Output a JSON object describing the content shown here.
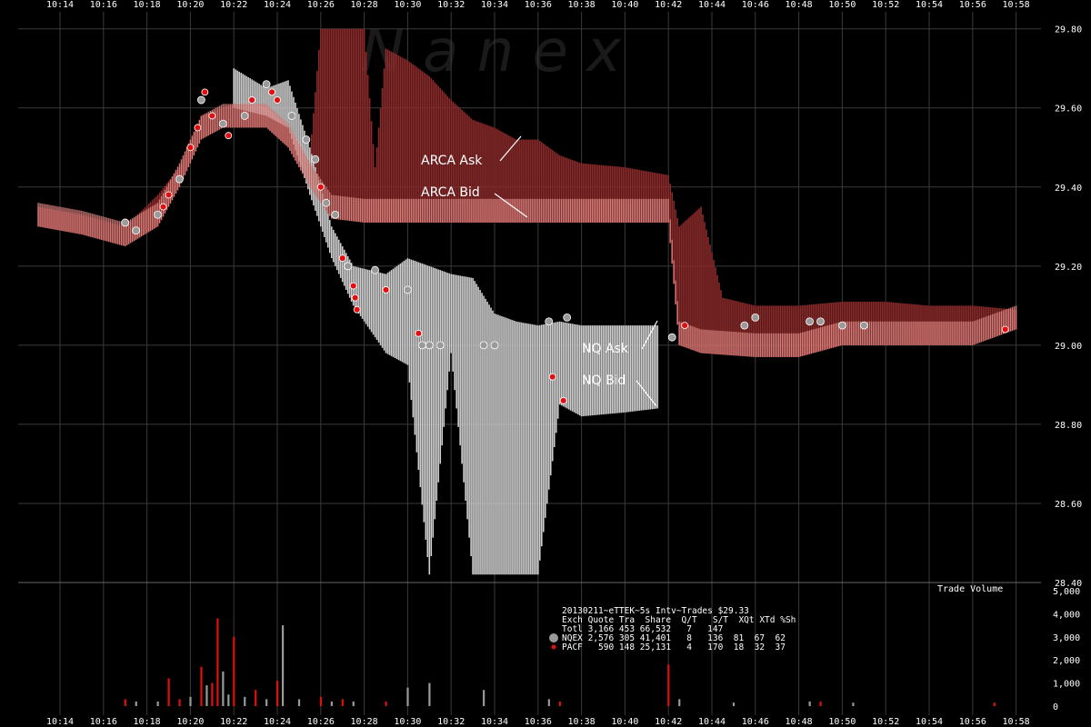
{
  "watermark": "N a n e x",
  "colors": {
    "background": "#000000",
    "grid": "#3a3a3a",
    "arca_ask": "#8b2a2a",
    "arca_bid": "#e88a86",
    "nq_quote": "#d0d0d0",
    "nqex_trade": "#9a9a9a",
    "pacf_trade": "#e01010",
    "annotation": "#ffffff"
  },
  "annotations": {
    "arca_ask": "ARCA Ask",
    "arca_bid": "ARCA Bid",
    "nq_ask": "NQ Ask",
    "nq_bid": "NQ Bid"
  },
  "volume_panel": {
    "label": "Trade Volume",
    "ticks": [
      "5,000",
      "4,000",
      "3,000",
      "2,000",
      "1,000",
      "0"
    ]
  },
  "stats_table": {
    "title": "20130211~eTTEK~5s Intv~Trades $29.33",
    "header": "Exch Quote Tra  Share  Q/T   S/T  XQt XTd %Sh",
    "rows": [
      {
        "name": "totl",
        "text": "Totl 3,166 453 66,532   7   147"
      },
      {
        "name": "nqex",
        "text": "NQEX 2,576 305 41,401   8   136  81  67  62"
      },
      {
        "name": "pacf",
        "text": "PACF   590 148 25,131   4   170  18  32  37"
      }
    ]
  },
  "chart_data": {
    "type": "line",
    "title": "",
    "xlabel": "",
    "ylabel": "",
    "x_ticks": [
      "10:14",
      "10:16",
      "10:18",
      "10:20",
      "10:22",
      "10:24",
      "10:26",
      "10:28",
      "10:30",
      "10:32",
      "10:34",
      "10:36",
      "10:38",
      "10:40",
      "10:42",
      "10:44",
      "10:46",
      "10:48",
      "10:50",
      "10:52",
      "10:54",
      "10:56",
      "10:58"
    ],
    "y_ticks": [
      "29.80",
      "29.60",
      "29.40",
      "29.20",
      "29.00",
      "28.80",
      "28.60",
      "28.40"
    ],
    "ylim": [
      28.4,
      29.82
    ],
    "series": [
      {
        "name": "ARCA Ask",
        "points": [
          [
            "10:13:00",
            29.35
          ],
          [
            "10:15:00",
            29.33
          ],
          [
            "10:17:00",
            29.3
          ],
          [
            "10:18:30",
            29.38
          ],
          [
            "10:19:30",
            29.45
          ],
          [
            "10:20:30",
            29.58
          ],
          [
            "10:21:30",
            29.6
          ],
          [
            "10:22:30",
            29.62
          ],
          [
            "10:23:30",
            29.6
          ],
          [
            "10:24:30",
            29.55
          ],
          [
            "10:25:30",
            29.48
          ],
          [
            "10:26:00",
            29.8
          ],
          [
            "10:27:00",
            29.8
          ],
          [
            "10:28:00",
            29.8
          ],
          [
            "10:28:30",
            29.45
          ],
          [
            "10:29:00",
            29.75
          ],
          [
            "10:30:00",
            29.72
          ],
          [
            "10:31:00",
            29.68
          ],
          [
            "10:32:00",
            29.62
          ],
          [
            "10:33:00",
            29.57
          ],
          [
            "10:34:00",
            29.55
          ],
          [
            "10:35:00",
            29.52
          ],
          [
            "10:36:00",
            29.52
          ],
          [
            "10:37:00",
            29.48
          ],
          [
            "10:38:00",
            29.46
          ],
          [
            "10:40:00",
            29.45
          ],
          [
            "10:42:00",
            29.43
          ],
          [
            "10:42:30",
            29.3
          ],
          [
            "10:43:30",
            29.35
          ],
          [
            "10:44:30",
            29.12
          ],
          [
            "10:46:00",
            29.1
          ],
          [
            "10:48:00",
            29.1
          ],
          [
            "10:50:00",
            29.11
          ],
          [
            "10:52:00",
            29.11
          ],
          [
            "10:54:00",
            29.1
          ],
          [
            "10:56:00",
            29.1
          ],
          [
            "10:58:00",
            29.09
          ]
        ]
      },
      {
        "name": "ARCA Bid",
        "points": [
          [
            "10:13:00",
            29.3
          ],
          [
            "10:15:00",
            29.28
          ],
          [
            "10:17:00",
            29.25
          ],
          [
            "10:18:30",
            29.3
          ],
          [
            "10:19:30",
            29.4
          ],
          [
            "10:20:30",
            29.52
          ],
          [
            "10:21:30",
            29.55
          ],
          [
            "10:22:30",
            29.55
          ],
          [
            "10:23:30",
            29.55
          ],
          [
            "10:24:30",
            29.5
          ],
          [
            "10:25:30",
            29.4
          ],
          [
            "10:26:30",
            29.32
          ],
          [
            "10:28:00",
            29.31
          ],
          [
            "10:30:00",
            29.31
          ],
          [
            "10:32:00",
            29.31
          ],
          [
            "10:34:00",
            29.31
          ],
          [
            "10:36:00",
            29.31
          ],
          [
            "10:38:00",
            29.31
          ],
          [
            "10:40:00",
            29.31
          ],
          [
            "10:42:00",
            29.31
          ],
          [
            "10:42:30",
            29.0
          ],
          [
            "10:43:30",
            28.98
          ],
          [
            "10:46:00",
            28.97
          ],
          [
            "10:48:00",
            28.97
          ],
          [
            "10:50:00",
            29.0
          ],
          [
            "10:52:00",
            29.0
          ],
          [
            "10:54:00",
            29.0
          ],
          [
            "10:56:00",
            29.0
          ],
          [
            "10:58:00",
            29.04
          ]
        ]
      },
      {
        "name": "NQ Ask",
        "points": [
          [
            "10:22:00",
            29.7
          ],
          [
            "10:23:30",
            29.65
          ],
          [
            "10:24:30",
            29.67
          ],
          [
            "10:25:30",
            29.5
          ],
          [
            "10:26:30",
            29.3
          ],
          [
            "10:27:30",
            29.2
          ],
          [
            "10:29:00",
            29.18
          ],
          [
            "10:30:00",
            29.22
          ],
          [
            "10:31:00",
            29.2
          ],
          [
            "10:32:00",
            29.18
          ],
          [
            "10:33:00",
            29.17
          ],
          [
            "10:34:00",
            29.08
          ],
          [
            "10:35:00",
            29.06
          ],
          [
            "10:36:00",
            29.05
          ],
          [
            "10:37:00",
            29.06
          ],
          [
            "10:38:00",
            29.05
          ],
          [
            "10:40:00",
            29.05
          ],
          [
            "10:41:30",
            29.05
          ]
        ]
      },
      {
        "name": "NQ Bid",
        "points": [
          [
            "10:22:00",
            29.6
          ],
          [
            "10:23:30",
            29.58
          ],
          [
            "10:24:30",
            29.55
          ],
          [
            "10:25:30",
            29.38
          ],
          [
            "10:26:30",
            29.22
          ],
          [
            "10:27:30",
            29.1
          ],
          [
            "10:29:00",
            28.98
          ],
          [
            "10:30:00",
            28.95
          ],
          [
            "10:31:00",
            28.42
          ],
          [
            "10:32:00",
            28.98
          ],
          [
            "10:33:00",
            28.42
          ],
          [
            "10:34:00",
            28.42
          ],
          [
            "10:35:00",
            28.42
          ],
          [
            "10:36:00",
            28.42
          ],
          [
            "10:37:00",
            28.85
          ],
          [
            "10:38:00",
            28.82
          ],
          [
            "10:40:00",
            28.83
          ],
          [
            "10:41:30",
            28.84
          ]
        ]
      }
    ],
    "trades": [
      {
        "exch": "NQEX",
        "t": "10:17:00",
        "p": 29.31
      },
      {
        "exch": "NQEX",
        "t": "10:17:30",
        "p": 29.29
      },
      {
        "exch": "NQEX",
        "t": "10:18:30",
        "p": 29.33
      },
      {
        "exch": "PACF",
        "t": "10:18:45",
        "p": 29.35
      },
      {
        "exch": "PACF",
        "t": "10:19:00",
        "p": 29.38
      },
      {
        "exch": "NQEX",
        "t": "10:19:30",
        "p": 29.42
      },
      {
        "exch": "PACF",
        "t": "10:20:00",
        "p": 29.5
      },
      {
        "exch": "PACF",
        "t": "10:20:20",
        "p": 29.55
      },
      {
        "exch": "NQEX",
        "t": "10:20:30",
        "p": 29.62
      },
      {
        "exch": "PACF",
        "t": "10:20:40",
        "p": 29.64
      },
      {
        "exch": "PACF",
        "t": "10:21:00",
        "p": 29.58
      },
      {
        "exch": "NQEX",
        "t": "10:21:30",
        "p": 29.56
      },
      {
        "exch": "PACF",
        "t": "10:21:45",
        "p": 29.53
      },
      {
        "exch": "NQEX",
        "t": "10:22:30",
        "p": 29.58
      },
      {
        "exch": "PACF",
        "t": "10:22:50",
        "p": 29.62
      },
      {
        "exch": "NQEX",
        "t": "10:23:30",
        "p": 29.66
      },
      {
        "exch": "PACF",
        "t": "10:23:45",
        "p": 29.64
      },
      {
        "exch": "PACF",
        "t": "10:24:00",
        "p": 29.62
      },
      {
        "exch": "NQEX",
        "t": "10:24:40",
        "p": 29.58
      },
      {
        "exch": "NQEX",
        "t": "10:25:20",
        "p": 29.52
      },
      {
        "exch": "NQEX",
        "t": "10:25:45",
        "p": 29.47
      },
      {
        "exch": "PACF",
        "t": "10:26:00",
        "p": 29.4
      },
      {
        "exch": "NQEX",
        "t": "10:26:15",
        "p": 29.36
      },
      {
        "exch": "NQEX",
        "t": "10:26:40",
        "p": 29.33
      },
      {
        "exch": "PACF",
        "t": "10:27:00",
        "p": 29.22
      },
      {
        "exch": "NQEX",
        "t": "10:27:15",
        "p": 29.2
      },
      {
        "exch": "PACF",
        "t": "10:27:30",
        "p": 29.15
      },
      {
        "exch": "PACF",
        "t": "10:27:35",
        "p": 29.12
      },
      {
        "exch": "PACF",
        "t": "10:27:40",
        "p": 29.09
      },
      {
        "exch": "NQEX",
        "t": "10:28:30",
        "p": 29.19
      },
      {
        "exch": "PACF",
        "t": "10:29:00",
        "p": 29.14
      },
      {
        "exch": "NQEX",
        "t": "10:30:00",
        "p": 29.14
      },
      {
        "exch": "PACF",
        "t": "10:30:30",
        "p": 29.03
      },
      {
        "exch": "NQEX",
        "t": "10:30:40",
        "p": 29.0
      },
      {
        "exch": "NQEX",
        "t": "10:31:00",
        "p": 29.0
      },
      {
        "exch": "NQEX",
        "t": "10:31:30",
        "p": 29.0
      },
      {
        "exch": "NQEX",
        "t": "10:33:30",
        "p": 29.0
      },
      {
        "exch": "NQEX",
        "t": "10:34:00",
        "p": 29.0
      },
      {
        "exch": "NQEX",
        "t": "10:36:30",
        "p": 29.06
      },
      {
        "exch": "PACF",
        "t": "10:36:40",
        "p": 28.92
      },
      {
        "exch": "PACF",
        "t": "10:37:10",
        "p": 28.86
      },
      {
        "exch": "NQEX",
        "t": "10:37:20",
        "p": 29.07
      },
      {
        "exch": "NQEX",
        "t": "10:42:10",
        "p": 29.02
      },
      {
        "exch": "PACF",
        "t": "10:42:45",
        "p": 29.05
      },
      {
        "exch": "NQEX",
        "t": "10:45:30",
        "p": 29.05
      },
      {
        "exch": "NQEX",
        "t": "10:46:00",
        "p": 29.07
      },
      {
        "exch": "NQEX",
        "t": "10:48:30",
        "p": 29.06
      },
      {
        "exch": "NQEX",
        "t": "10:49:00",
        "p": 29.06
      },
      {
        "exch": "NQEX",
        "t": "10:50:00",
        "p": 29.05
      },
      {
        "exch": "NQEX",
        "t": "10:51:00",
        "p": 29.05
      },
      {
        "exch": "PACF",
        "t": "10:57:30",
        "p": 29.04
      }
    ],
    "volume": [
      {
        "exch": "PACF",
        "t": "10:17:00",
        "v": 300
      },
      {
        "exch": "NQEX",
        "t": "10:17:30",
        "v": 200
      },
      {
        "exch": "NQEX",
        "t": "10:18:30",
        "v": 200
      },
      {
        "exch": "PACF",
        "t": "10:19:00",
        "v": 1200
      },
      {
        "exch": "PACF",
        "t": "10:19:30",
        "v": 300
      },
      {
        "exch": "NQEX",
        "t": "10:20:00",
        "v": 400
      },
      {
        "exch": "PACF",
        "t": "10:20:30",
        "v": 1700
      },
      {
        "exch": "NQEX",
        "t": "10:20:45",
        "v": 900
      },
      {
        "exch": "PACF",
        "t": "10:21:00",
        "v": 1000
      },
      {
        "exch": "PACF",
        "t": "10:21:15",
        "v": 3800
      },
      {
        "exch": "NQEX",
        "t": "10:21:30",
        "v": 1500
      },
      {
        "exch": "NQEX",
        "t": "10:21:45",
        "v": 500
      },
      {
        "exch": "PACF",
        "t": "10:22:00",
        "v": 3000
      },
      {
        "exch": "NQEX",
        "t": "10:22:30",
        "v": 400
      },
      {
        "exch": "PACF",
        "t": "10:23:00",
        "v": 700
      },
      {
        "exch": "NQEX",
        "t": "10:23:30",
        "v": 300
      },
      {
        "exch": "PACF",
        "t": "10:24:00",
        "v": 1100
      },
      {
        "exch": "NQEX",
        "t": "10:24:15",
        "v": 3500
      },
      {
        "exch": "NQEX",
        "t": "10:25:00",
        "v": 300
      },
      {
        "exch": "PACF",
        "t": "10:26:00",
        "v": 400
      },
      {
        "exch": "NQEX",
        "t": "10:26:30",
        "v": 200
      },
      {
        "exch": "PACF",
        "t": "10:27:00",
        "v": 300
      },
      {
        "exch": "NQEX",
        "t": "10:27:30",
        "v": 200
      },
      {
        "exch": "PACF",
        "t": "10:29:00",
        "v": 200
      },
      {
        "exch": "NQEX",
        "t": "10:30:00",
        "v": 800
      },
      {
        "exch": "NQEX",
        "t": "10:31:00",
        "v": 1000
      },
      {
        "exch": "NQEX",
        "t": "10:33:30",
        "v": 700
      },
      {
        "exch": "NQEX",
        "t": "10:36:30",
        "v": 300
      },
      {
        "exch": "PACF",
        "t": "10:37:00",
        "v": 200
      },
      {
        "exch": "PACF",
        "t": "10:42:00",
        "v": 1800
      },
      {
        "exch": "NQEX",
        "t": "10:42:30",
        "v": 300
      },
      {
        "exch": "NQEX",
        "t": "10:45:00",
        "v": 150
      },
      {
        "exch": "NQEX",
        "t": "10:48:30",
        "v": 200
      },
      {
        "exch": "PACF",
        "t": "10:49:00",
        "v": 200
      },
      {
        "exch": "NQEX",
        "t": "10:50:30",
        "v": 150
      },
      {
        "exch": "PACF",
        "t": "10:57:00",
        "v": 150
      }
    ]
  }
}
